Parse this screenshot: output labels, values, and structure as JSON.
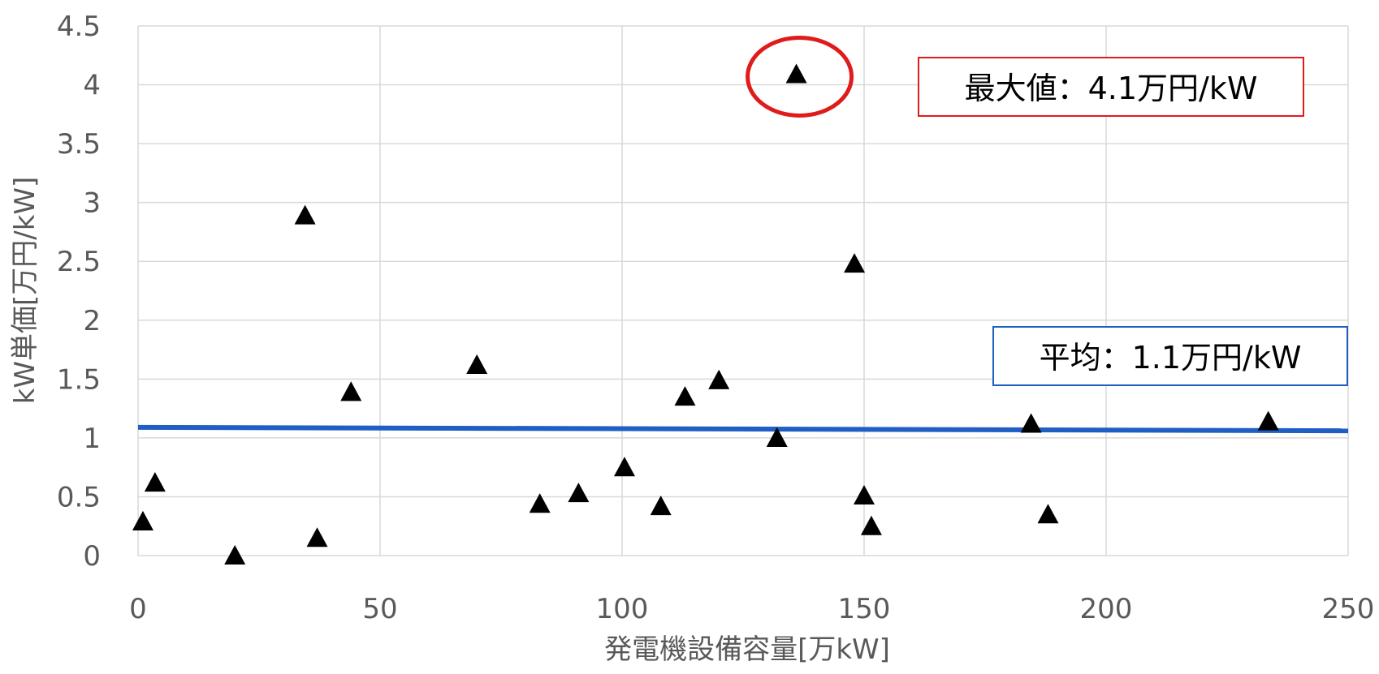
{
  "chart_data": {
    "type": "scatter",
    "xlabel": "発電機設備容量[万kW]",
    "ylabel": "kW単価[万円/kW]",
    "xlim": [
      0,
      250
    ],
    "ylim": [
      0,
      4.5
    ],
    "x_ticks": [
      "0",
      "50",
      "100",
      "150",
      "200",
      "250"
    ],
    "y_ticks": [
      "0",
      "0.5",
      "1",
      "1.5",
      "2",
      "2.5",
      "3",
      "3.5",
      "4",
      "4.5"
    ],
    "grid": true,
    "marker": "triangle",
    "points": [
      {
        "x": 1,
        "y": 0.29
      },
      {
        "x": 3.5,
        "y": 0.62
      },
      {
        "x": 20,
        "y": 0.0
      },
      {
        "x": 34.5,
        "y": 2.89
      },
      {
        "x": 37,
        "y": 0.15
      },
      {
        "x": 44,
        "y": 1.39
      },
      {
        "x": 70,
        "y": 1.62
      },
      {
        "x": 83,
        "y": 0.44
      },
      {
        "x": 91,
        "y": 0.53
      },
      {
        "x": 100.5,
        "y": 0.75
      },
      {
        "x": 108,
        "y": 0.42
      },
      {
        "x": 113,
        "y": 1.35
      },
      {
        "x": 120,
        "y": 1.49
      },
      {
        "x": 132,
        "y": 1.0
      },
      {
        "x": 136,
        "y": 4.09
      },
      {
        "x": 148,
        "y": 2.48
      },
      {
        "x": 150,
        "y": 0.51
      },
      {
        "x": 151.5,
        "y": 0.25
      },
      {
        "x": 184.5,
        "y": 1.12
      },
      {
        "x": 188,
        "y": 0.35
      },
      {
        "x": 233.5,
        "y": 1.14
      }
    ],
    "average_line": {
      "y_start": 1.09,
      "y_end": 1.06,
      "color": "#1f5fc4"
    },
    "max_highlight": {
      "x": 136,
      "y": 4.09,
      "color": "#e01b1b"
    },
    "annotations": {
      "max_label": "最大値：4.1万円/kW",
      "avg_label": "平均：1.1万円/kW"
    },
    "colors": {
      "grid": "#d9d9d9",
      "marker": "#000000",
      "text": "#595959",
      "max_box": "#e01b1b",
      "avg_box": "#1f5fc4"
    }
  }
}
